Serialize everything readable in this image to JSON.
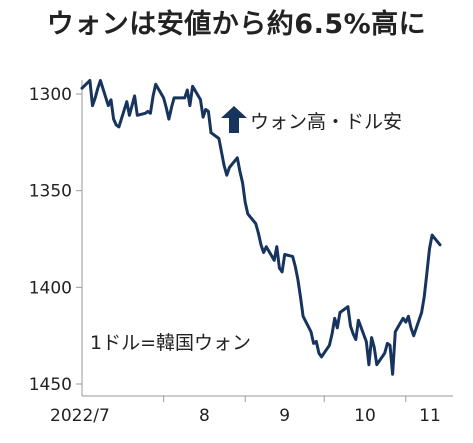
{
  "chart_data": {
    "type": "line",
    "title": "ウォンは安値から約6.5%高に",
    "xlabel": "",
    "ylabel": "",
    "y_inverted": true,
    "ylim": [
      1290,
      1455
    ],
    "yticks": [
      1300,
      1350,
      1400,
      1450
    ],
    "xtick_labels": [
      "2022/7",
      "8",
      "9",
      "10",
      "11"
    ],
    "xlim": [
      "2022-07-01",
      "2022-11-14"
    ],
    "grid": false,
    "line_color": "#17345e",
    "arrow_color": "#17345e",
    "annotations": {
      "arrow_label": "ウォン高・ドル安",
      "unit_label": "1ドル=韓国ウォン"
    },
    "series": [
      {
        "x": [
          "2022-07-01",
          "2022-07-04",
          "2022-07-05",
          "2022-07-06",
          "2022-07-07",
          "2022-07-08",
          "2022-07-11",
          "2022-07-12",
          "2022-07-13",
          "2022-07-14",
          "2022-07-15",
          "2022-07-18",
          "2022-07-19",
          "2022-07-20",
          "2022-07-21",
          "2022-07-22",
          "2022-07-25",
          "2022-07-26",
          "2022-07-27",
          "2022-07-28",
          "2022-07-29",
          "2022-08-01",
          "2022-08-02",
          "2022-08-03",
          "2022-08-04",
          "2022-08-05",
          "2022-08-08",
          "2022-08-09",
          "2022-08-10",
          "2022-08-11",
          "2022-08-12",
          "2022-08-15",
          "2022-08-16",
          "2022-08-17",
          "2022-08-18",
          "2022-08-19",
          "2022-08-22",
          "2022-08-23",
          "2022-08-24",
          "2022-08-25",
          "2022-08-26",
          "2022-08-29",
          "2022-08-30",
          "2022-08-31",
          "2022-09-01",
          "2022-09-02",
          "2022-09-05",
          "2022-09-06",
          "2022-09-07",
          "2022-09-08",
          "2022-09-09",
          "2022-09-12",
          "2022-09-13",
          "2022-09-14",
          "2022-09-15",
          "2022-09-16",
          "2022-09-19",
          "2022-09-20",
          "2022-09-21",
          "2022-09-22",
          "2022-09-23",
          "2022-09-26",
          "2022-09-27",
          "2022-09-28",
          "2022-09-29",
          "2022-09-30",
          "2022-10-03",
          "2022-10-04",
          "2022-10-05",
          "2022-10-06",
          "2022-10-07",
          "2022-10-10",
          "2022-10-11",
          "2022-10-12",
          "2022-10-13",
          "2022-10-14",
          "2022-10-17",
          "2022-10-18",
          "2022-10-19",
          "2022-10-20",
          "2022-10-21",
          "2022-10-24",
          "2022-10-25",
          "2022-10-26",
          "2022-10-27",
          "2022-10-28",
          "2022-10-31",
          "2022-11-01",
          "2022-11-02",
          "2022-11-03",
          "2022-11-04",
          "2022-11-07",
          "2022-11-08",
          "2022-11-09",
          "2022-11-10",
          "2022-11-11",
          "2022-11-14"
        ],
        "values": [
          1297,
          1293,
          1306,
          1302,
          1297,
          1293,
          1306,
          1303,
          1313,
          1316,
          1317,
          1304,
          1311,
          1306,
          1301,
          1311,
          1310,
          1309,
          1310,
          1301,
          1295,
          1302,
          1307,
          1313,
          1307,
          1302,
          1302,
          1302,
          1298,
          1306,
          1296,
          1303,
          1312,
          1308,
          1309,
          1320,
          1323,
          1330,
          1337,
          1342,
          1338,
          1333,
          1340,
          1346,
          1356,
          1362,
          1367,
          1372,
          1378,
          1382,
          1379,
          1386,
          1379,
          1390,
          1392,
          1383,
          1384,
          1389,
          1396,
          1405,
          1415,
          1423,
          1429,
          1428,
          1434,
          1436,
          1430,
          1424,
          1416,
          1421,
          1413,
          1410,
          1420,
          1424,
          1427,
          1417,
          1428,
          1440,
          1426,
          1431,
          1440,
          1434,
          1429,
          1430,
          1445,
          1423,
          1416,
          1418,
          1415,
          1421,
          1425,
          1413,
          1405,
          1393,
          1380,
          1373,
          1378
        ]
      }
    ]
  }
}
